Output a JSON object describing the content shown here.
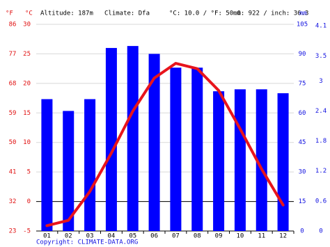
{
  "chart_data": {
    "type": "combo",
    "annotations": [
      "Altitude: 187m",
      "Climate: Dfa",
      "°C: 10.0 / °F: 50.0",
      "mm: 922 / inch: 36.3"
    ],
    "source": "Copyright: CLIMATE-DATA.ORG",
    "y_label": "°C",
    "y3_label": "°F",
    "y2_label": "mm",
    "categories": [
      "01",
      "02",
      "03",
      "04",
      "05",
      "06",
      "07",
      "08",
      "09",
      "10",
      "11",
      "12"
    ],
    "series": [
      {
        "type": "bar",
        "axis": "y2",
        "color": "#0000ff",
        "values": [
          67,
          61,
          67,
          93,
          94,
          90,
          83,
          83,
          71,
          72,
          72,
          70
        ]
      },
      {
        "type": "line",
        "color": "#e8141c",
        "values": [
          -4.1,
          -3.2,
          1.7,
          8.2,
          15.3,
          20.9,
          23.4,
          22.5,
          18.8,
          12.3,
          5.5,
          -0.6
        ]
      }
    ],
    "ylim": [
      -5,
      30
    ],
    "yticks": [
      -5,
      0,
      5,
      10,
      15,
      20,
      25,
      30
    ],
    "y3lim": [
      23,
      86
    ],
    "y3ticks": [
      23,
      32,
      41,
      50,
      59,
      68,
      77,
      86
    ],
    "y2lim": [
      0,
      105
    ],
    "y2ticks": [
      0,
      15,
      30,
      45,
      60,
      75,
      90,
      105
    ],
    "y4lim": [
      0,
      4.13
    ],
    "y4ticks": [
      0,
      0.6,
      1.2,
      1.8,
      2.4,
      3,
      3.5,
      4.1
    ],
    "grid": true
  }
}
